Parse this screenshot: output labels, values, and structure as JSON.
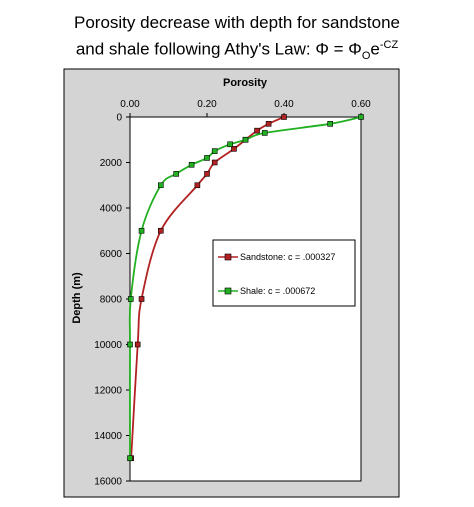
{
  "title": {
    "line1": "Porosity decrease with depth for sandstone",
    "line2_prefix": "and shale  following Athy's Law: Φ = Φ",
    "line2_sub": "O",
    "line2_mid": "e",
    "line2_sup": "-CZ"
  },
  "colors": {
    "outer_bg": "#d4d4d4",
    "plot_bg": "#ffffff",
    "sandstone": "#b22222",
    "shale": "#22b022"
  },
  "chart_data": {
    "type": "line",
    "xlabel": "Porosity",
    "ylabel": "Depth  (m)",
    "xlim": [
      0,
      0.6
    ],
    "ylim": [
      0,
      16000
    ],
    "x_axis_position": "top",
    "y_reversed": true,
    "grid": false,
    "legend_position": "center-right",
    "x_ticks": [
      "0.00",
      "0.20",
      "0.40",
      "0.60"
    ],
    "y_ticks": [
      "0",
      "2000",
      "4000",
      "6000",
      "8000",
      "10000",
      "12000",
      "14000",
      "16000"
    ],
    "series": [
      {
        "name": "Sandstone: c = .000327",
        "color": "#b22222",
        "points": [
          {
            "porosity": 0.4,
            "depth": 0
          },
          {
            "porosity": 0.36,
            "depth": 300
          },
          {
            "porosity": 0.33,
            "depth": 600
          },
          {
            "porosity": 0.3,
            "depth": 1000
          },
          {
            "porosity": 0.27,
            "depth": 1400
          },
          {
            "porosity": 0.22,
            "depth": 2000
          },
          {
            "porosity": 0.2,
            "depth": 2500
          },
          {
            "porosity": 0.175,
            "depth": 3000
          },
          {
            "porosity": 0.08,
            "depth": 5000
          },
          {
            "porosity": 0.03,
            "depth": 8000
          },
          {
            "porosity": 0.02,
            "depth": 10000
          },
          {
            "porosity": 0.003,
            "depth": 15000
          }
        ]
      },
      {
        "name": "Shale: c = .000672",
        "color": "#22b022",
        "points": [
          {
            "porosity": 0.6,
            "depth": 0
          },
          {
            "porosity": 0.52,
            "depth": 300
          },
          {
            "porosity": 0.35,
            "depth": 700
          },
          {
            "porosity": 0.3,
            "depth": 1000
          },
          {
            "porosity": 0.26,
            "depth": 1200
          },
          {
            "porosity": 0.22,
            "depth": 1500
          },
          {
            "porosity": 0.2,
            "depth": 1800
          },
          {
            "porosity": 0.16,
            "depth": 2100
          },
          {
            "porosity": 0.12,
            "depth": 2500
          },
          {
            "porosity": 0.08,
            "depth": 3000
          },
          {
            "porosity": 0.03,
            "depth": 5000
          },
          {
            "porosity": 0.002,
            "depth": 8000
          },
          {
            "porosity": 0.0,
            "depth": 10000
          },
          {
            "porosity": 0.0,
            "depth": 15000
          }
        ]
      }
    ]
  }
}
